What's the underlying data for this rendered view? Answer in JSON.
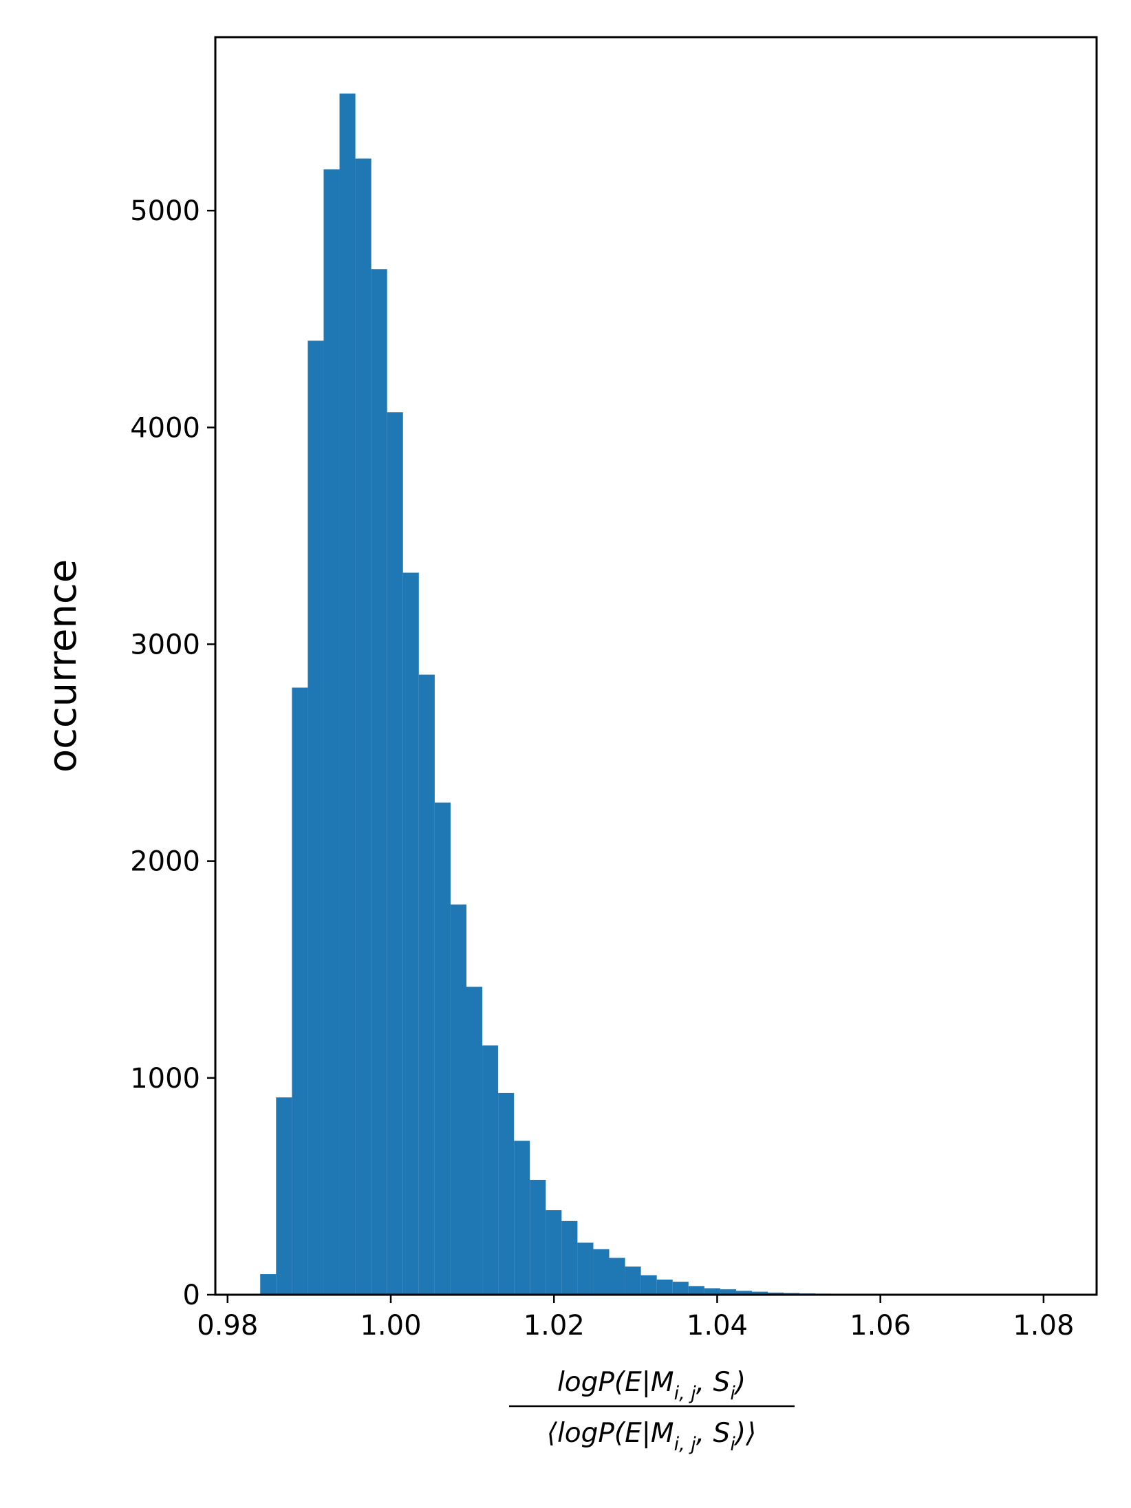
{
  "chart_data": {
    "type": "bar",
    "subtype": "histogram",
    "xlabel_numerator": "logP(E|M",
    "xlabel_numerator_sub": "i, j",
    "xlabel_numerator_tail": ", S",
    "xlabel_numerator_sub2": "i",
    "xlabel_numerator_end": ")",
    "xlabel_denominator": "⟨logP(E|M",
    "xlabel_denominator_sub": "i, j",
    "xlabel_denominator_tail": ", S",
    "xlabel_denominator_sub2": "i",
    "xlabel_denominator_end": ")⟩",
    "ylabel": "occurrence",
    "xlim": [
      0.9785,
      1.0865
    ],
    "ylim": [
      0,
      5800
    ],
    "x_ticks": [
      0.98,
      1.0,
      1.02,
      1.04,
      1.06,
      1.08
    ],
    "x_tick_labels": [
      "0.98",
      "1.00",
      "1.02",
      "1.04",
      "1.06",
      "1.08"
    ],
    "y_ticks": [
      0,
      1000,
      2000,
      3000,
      4000,
      5000
    ],
    "y_tick_labels": [
      "0",
      "1000",
      "2000",
      "3000",
      "4000",
      "5000"
    ],
    "bar_color": "#1f77b4",
    "bin_start": 0.984,
    "bin_width": 0.001944,
    "values": [
      95,
      910,
      2800,
      4400,
      5190,
      5540,
      5240,
      4730,
      4070,
      3330,
      2860,
      2270,
      1800,
      1420,
      1150,
      930,
      710,
      530,
      390,
      340,
      240,
      210,
      170,
      130,
      90,
      70,
      60,
      40,
      30,
      25,
      18,
      14,
      10,
      8,
      6,
      5,
      4,
      3,
      3,
      2,
      2,
      1,
      1,
      1,
      1,
      1,
      1,
      1,
      1,
      1,
      1,
      1
    ]
  }
}
